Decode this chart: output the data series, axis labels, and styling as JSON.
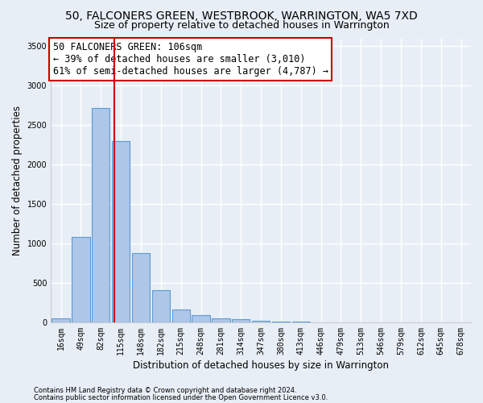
{
  "title": "50, FALCONERS GREEN, WESTBROOK, WARRINGTON, WA5 7XD",
  "subtitle": "Size of property relative to detached houses in Warrington",
  "xlabel": "Distribution of detached houses by size in Warrington",
  "ylabel": "Number of detached properties",
  "bin_labels": [
    "16sqm",
    "49sqm",
    "82sqm",
    "115sqm",
    "148sqm",
    "182sqm",
    "215sqm",
    "248sqm",
    "281sqm",
    "314sqm",
    "347sqm",
    "380sqm",
    "413sqm",
    "446sqm",
    "479sqm",
    "513sqm",
    "546sqm",
    "579sqm",
    "612sqm",
    "645sqm",
    "678sqm"
  ],
  "bar_values": [
    50,
    1080,
    2720,
    2300,
    880,
    410,
    160,
    90,
    55,
    40,
    20,
    5,
    5,
    2,
    0,
    0,
    0,
    0,
    0,
    0,
    0
  ],
  "bar_color": "#aec6e8",
  "bar_edge_color": "#5b9bd5",
  "property_line_x": 2.67,
  "annotation_text": "50 FALCONERS GREEN: 106sqm\n← 39% of detached houses are smaller (3,010)\n61% of semi-detached houses are larger (4,787) →",
  "annotation_box_color": "#ffffff",
  "annotation_box_edge_color": "#cc0000",
  "vline_color": "#cc0000",
  "ylim": [
    0,
    3600
  ],
  "yticks": [
    0,
    500,
    1000,
    1500,
    2000,
    2500,
    3000,
    3500
  ],
  "footnote1": "Contains HM Land Registry data © Crown copyright and database right 2024.",
  "footnote2": "Contains public sector information licensed under the Open Government Licence v3.0.",
  "background_color": "#e8eef5",
  "plot_bg_color": "#e8eef5",
  "grid_color": "#ffffff",
  "title_fontsize": 10,
  "subtitle_fontsize": 9,
  "label_fontsize": 8.5,
  "tick_fontsize": 7,
  "annotation_fontsize": 8.5
}
